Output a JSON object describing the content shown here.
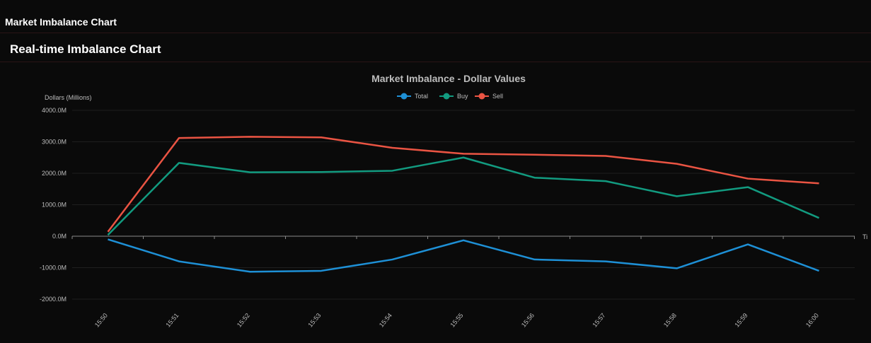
{
  "app": {
    "title": "Market Imbalance Chart"
  },
  "section": {
    "title": "Real-time Imbalance Chart"
  },
  "colors": {
    "total": "#1e90d6",
    "buy": "#129b80",
    "sell": "#ea5443",
    "grid": "#1f1f1f",
    "text": "#bdbdbd",
    "zero": "#8a8a8a"
  },
  "chart_data": {
    "type": "line",
    "title": "Market Imbalance - Dollar Values",
    "ylabel": "Dollars (Millions)",
    "xlabel": "Ti",
    "legend_position": "top-center",
    "grid": true,
    "ylim": [
      -2000,
      4000
    ],
    "yticks": [
      "4000.0M",
      "3000.0M",
      "2000.0M",
      "1000.0M",
      "0.0M",
      "-1000.0M",
      "-2000.0M"
    ],
    "ytick_values": [
      4000,
      3000,
      2000,
      1000,
      0,
      -1000,
      -2000
    ],
    "categories": [
      "15:50",
      "15:51",
      "15:52",
      "15:53",
      "15:54",
      "15:55",
      "15:56",
      "15:57",
      "15:58",
      "15:59",
      "16:00"
    ],
    "series": [
      {
        "name": "Total",
        "color": "#1e90d6",
        "values": [
          -100,
          -800,
          -1130,
          -1100,
          -740,
          -130,
          -740,
          -800,
          -1020,
          -260,
          -1100
        ]
      },
      {
        "name": "Buy",
        "color": "#129b80",
        "values": [
          40,
          2330,
          2030,
          2040,
          2080,
          2500,
          1860,
          1750,
          1270,
          1560,
          580
        ]
      },
      {
        "name": "Sell",
        "color": "#ea5443",
        "values": [
          140,
          3120,
          3160,
          3140,
          2810,
          2620,
          2590,
          2550,
          2300,
          1830,
          1680
        ]
      }
    ]
  }
}
